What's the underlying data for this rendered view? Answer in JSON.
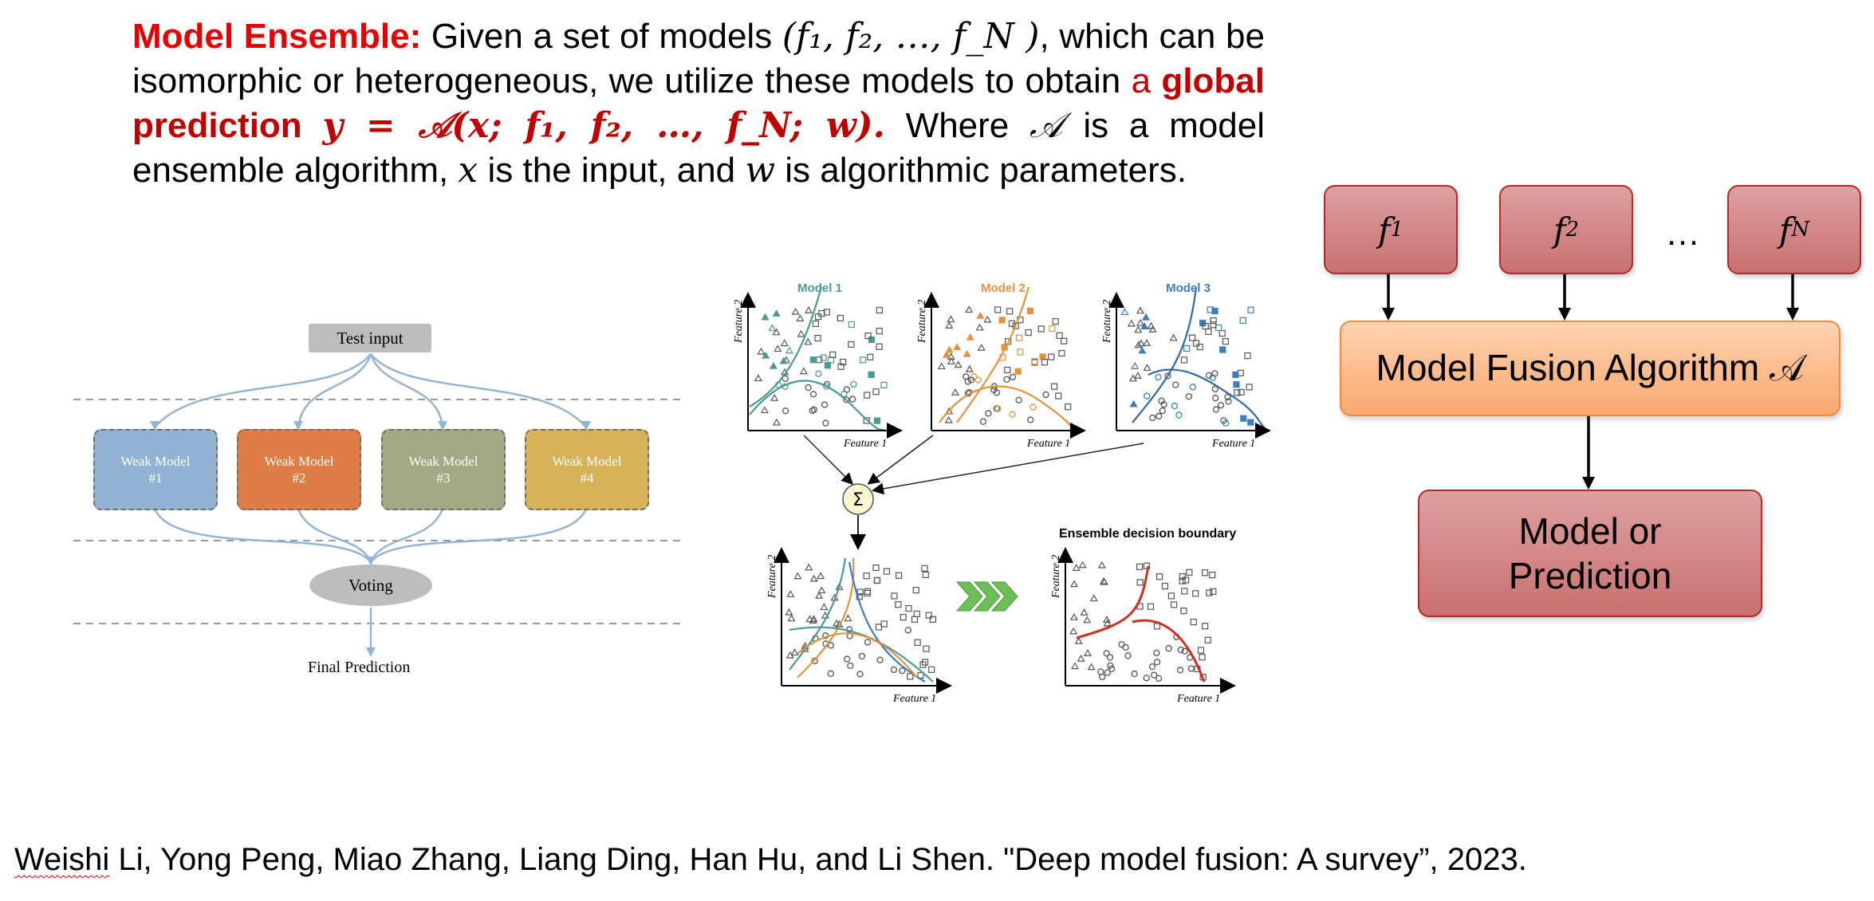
{
  "definition": {
    "term": "Model Ensemble:",
    "p1": " Given a set of models ",
    "models_tuple": "(f₁, f₂, …, f_N )",
    "p2": ", which can be isomorphic or heterogeneous, we utilize these models to obtain ",
    "a_word": "a",
    "global_prediction": "global prediction",
    "formula": "y = 𝒜(x; f₁, f₂, …, f_N; w).",
    "p3": " Where ",
    "algo_symbol": "𝒜",
    "p4": " is a model ensemble algorithm, ",
    "x_symbol": "x",
    "p5": " is the input, and ",
    "w_symbol": "w",
    "p6": " is algorithmic parameters."
  },
  "voting_diagram": {
    "test_input": "Test input",
    "weak_models": [
      {
        "line1": "Weak Model",
        "line2": "#1",
        "color": "#93b2d3"
      },
      {
        "line1": "Weak Model",
        "line2": "#2",
        "color": "#e07c45"
      },
      {
        "line1": "Weak Model",
        "line2": "#3",
        "color": "#a3a984"
      },
      {
        "line1": "Weak Model",
        "line2": "#4",
        "color": "#d8b25a"
      }
    ],
    "voting": "Voting",
    "final": "Final Prediction"
  },
  "boundary_diagram": {
    "plots": [
      {
        "title": "Model 1",
        "color": "#4a9a96"
      },
      {
        "title": "Model 2",
        "color": "#e8913a"
      },
      {
        "title": "Model 3",
        "color": "#9fcfd8"
      }
    ],
    "xlabel": "Feature 1",
    "ylabel": "Feature 2",
    "sum_symbol": "Σ",
    "ensemble_title": "Ensemble decision boundary",
    "boundary_color": "#d03020",
    "arrow_color": "#6cbf56"
  },
  "fusion_diagram": {
    "models": [
      {
        "base": "f",
        "sub": "1"
      },
      {
        "base": "f",
        "sub": "2"
      },
      {
        "base": "f",
        "sub": "N"
      }
    ],
    "dots": "…",
    "algorithm_label": "Model Fusion Algorithm 𝒜",
    "output_line1": "Model or",
    "output_line2": "Prediction"
  },
  "citation": {
    "first": "Weishi",
    "rest": " Li, Yong Peng, Miao Zhang, Liang Ding, Han Hu, and Li Shen. \"Deep model fusion: A survey”, 2023."
  }
}
